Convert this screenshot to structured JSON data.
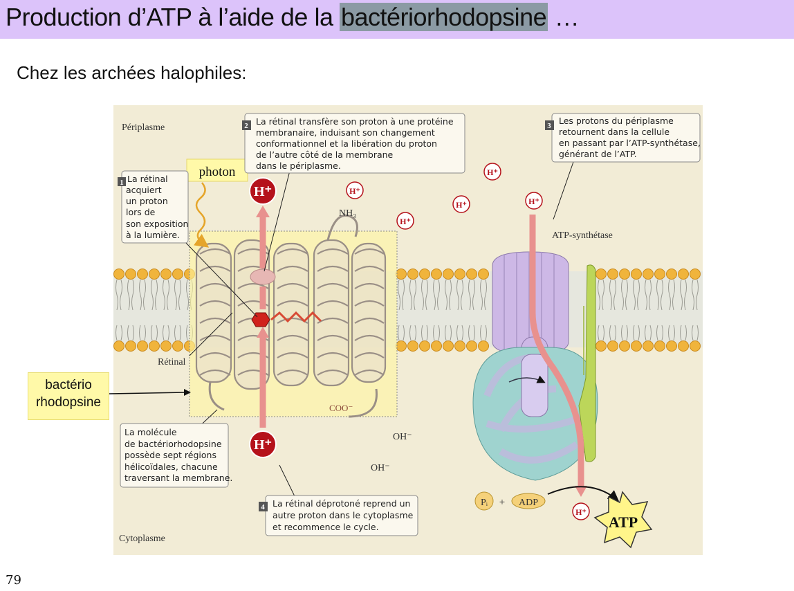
{
  "title": {
    "prefix": "Production d’ATP à l’aide de la ",
    "highlight": "bactériorhodopsine",
    "suffix": " …"
  },
  "subtitle": "Chez les archées halophiles:",
  "page_number": "79",
  "diagram": {
    "regions": {
      "periplasm": "Périplasme",
      "cytoplasm": "Cytoplasme"
    },
    "labels": {
      "photon": "photon",
      "bacteriorhodopsin_line1": "bactério",
      "bacteriorhodopsin_line2": "rhodopsine",
      "retinal": "Rétinal",
      "nh3": "NH₃",
      "coo": "COO⁻",
      "oh": "OH⁻",
      "atp_synthase": "ATP-synthétase",
      "atp": "ATP",
      "adp": "ADP",
      "pi": "Pᵢ",
      "plus": "+",
      "proton": "H⁺"
    },
    "steps": [
      {
        "number": "1",
        "lines": [
          "La rétinal",
          "acquiert",
          "un proton",
          "lors de",
          "son exposition",
          "à la lumière."
        ]
      },
      {
        "number": "2",
        "lines": [
          "La rétinal transfère son proton à une protéine",
          "membranaire, induisant son changement",
          "conformationnel et la libération du proton",
          "de l’autre côté de la membrane",
          "dans le périplasme."
        ]
      },
      {
        "number": "3",
        "lines": [
          "Les protons du périplasme",
          "retournent dans la cellule",
          "en passant par l’ATP-synthétase,",
          "générant de l’ATP."
        ]
      },
      {
        "number": "4",
        "lines": [
          "La rétinal déprotoné reprend un",
          "autre proton dans le cytoplasme",
          "et recommence le cycle."
        ]
      }
    ],
    "molecule_note": [
      "La molécule",
      "de bactériorhodopsine",
      "possède sept régions",
      "hélicoïdales, chacune",
      "traversant la membrane."
    ],
    "colors": {
      "background": "#f2ecd6",
      "membrane": "#e9eadf",
      "lipid_head": "#f0b43c",
      "proton_red": "#b5121b",
      "arrow_pink": "#e8918e",
      "synthase_purple": "#cdb8e6",
      "synthase_teal": "#9fd3cf",
      "stalk_green": "#bcd65a",
      "highlight_yellow": "#fff8a0"
    }
  }
}
